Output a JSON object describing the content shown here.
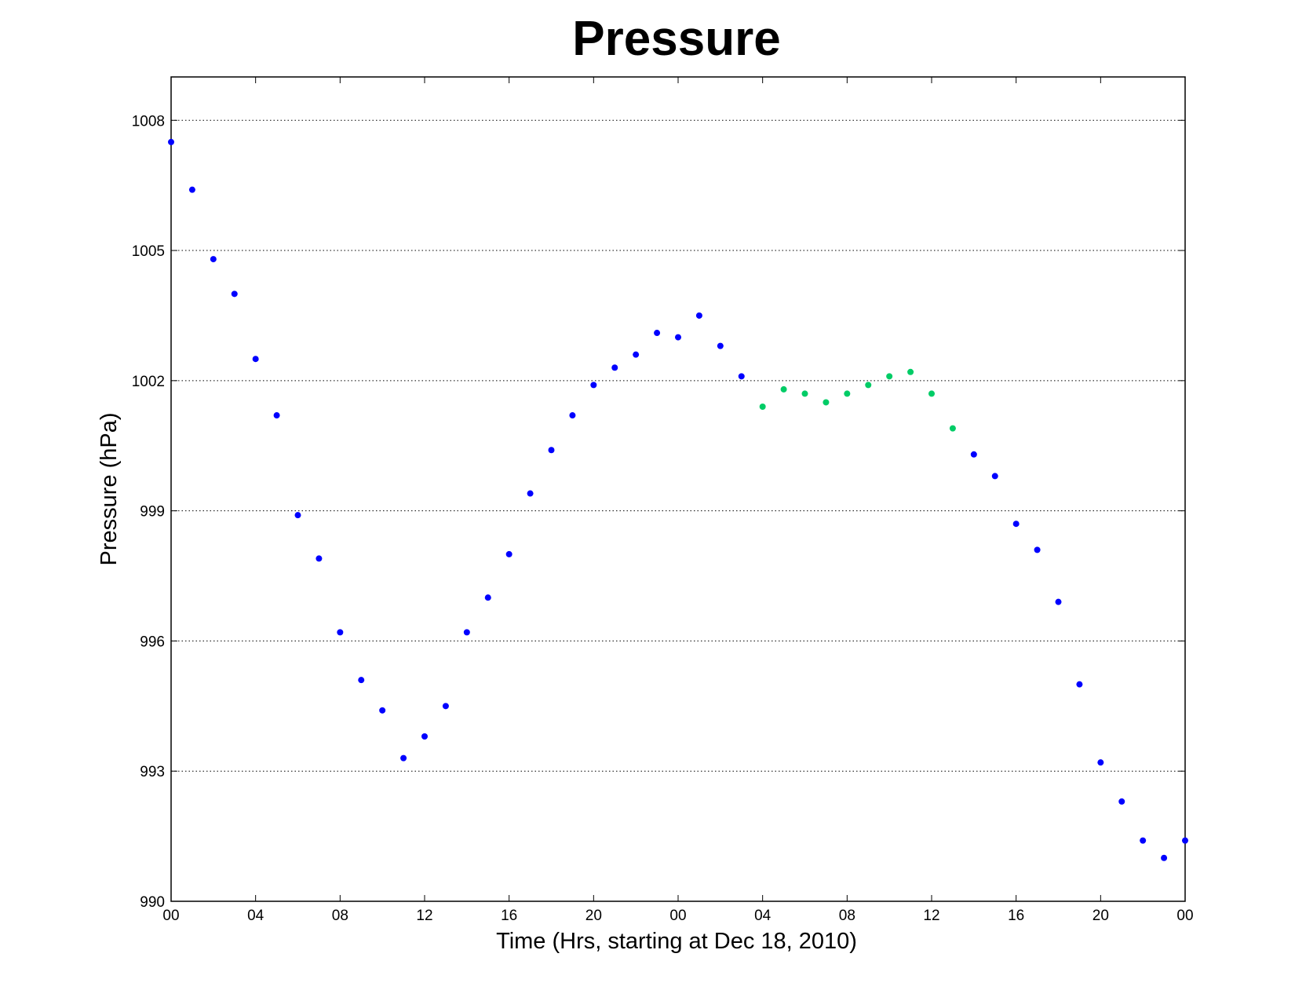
{
  "chart_data": {
    "type": "scatter",
    "title": "Pressure",
    "xlabel": "Time (Hrs, starting at Dec 18, 2010)",
    "ylabel": "Pressure (hPa)",
    "xlim": [
      0,
      48
    ],
    "ylim": [
      990,
      1009
    ],
    "xticks": [
      0,
      4,
      8,
      12,
      16,
      20,
      24,
      28,
      32,
      36,
      40,
      44,
      48
    ],
    "xtick_labels": [
      "00",
      "04",
      "08",
      "12",
      "16",
      "20",
      "00",
      "04",
      "08",
      "12",
      "16",
      "20",
      "00"
    ],
    "yticks": [
      990,
      993,
      996,
      999,
      1002,
      1005,
      1008
    ],
    "ytick_labels": [
      "990",
      "993",
      "996",
      "999",
      "1002",
      "1005",
      "1008"
    ],
    "grid": "horizontal dotted",
    "series": [
      {
        "color": "#0000ff",
        "points": [
          [
            0,
            1007.5
          ],
          [
            1,
            1006.4
          ],
          [
            2,
            1004.8
          ],
          [
            3,
            1004.0
          ],
          [
            4,
            1002.5
          ],
          [
            5,
            1001.2
          ],
          [
            6,
            998.9
          ],
          [
            7,
            997.9
          ],
          [
            8,
            996.2
          ],
          [
            9,
            995.1
          ],
          [
            10,
            994.4
          ],
          [
            11,
            993.3
          ],
          [
            12,
            993.8
          ],
          [
            13,
            994.5
          ],
          [
            14,
            996.2
          ],
          [
            15,
            997.0
          ],
          [
            16,
            998.0
          ],
          [
            17,
            999.4
          ],
          [
            18,
            1000.4
          ],
          [
            19,
            1001.2
          ],
          [
            20,
            1001.9
          ],
          [
            21,
            1002.3
          ],
          [
            22,
            1002.6
          ],
          [
            23,
            1003.1
          ],
          [
            24,
            1003.0
          ],
          [
            25,
            1003.5
          ],
          [
            26,
            1002.8
          ],
          [
            27,
            1002.1
          ],
          [
            38,
            1000.3
          ],
          [
            39,
            999.8
          ],
          [
            40,
            998.7
          ],
          [
            41,
            998.1
          ],
          [
            42,
            996.9
          ],
          [
            43,
            995.0
          ],
          [
            44,
            993.2
          ],
          [
            45,
            992.3
          ],
          [
            46,
            991.4
          ],
          [
            47,
            991.0
          ],
          [
            48,
            991.4
          ]
        ]
      },
      {
        "color": "#00cc66",
        "points": [
          [
            28,
            1001.4
          ],
          [
            29,
            1001.8
          ],
          [
            30,
            1001.7
          ],
          [
            31,
            1001.5
          ],
          [
            32,
            1001.7
          ],
          [
            33,
            1001.9
          ],
          [
            34,
            1002.1
          ],
          [
            35,
            1002.2
          ],
          [
            36,
            1001.7
          ],
          [
            37,
            1000.9
          ]
        ]
      }
    ]
  }
}
